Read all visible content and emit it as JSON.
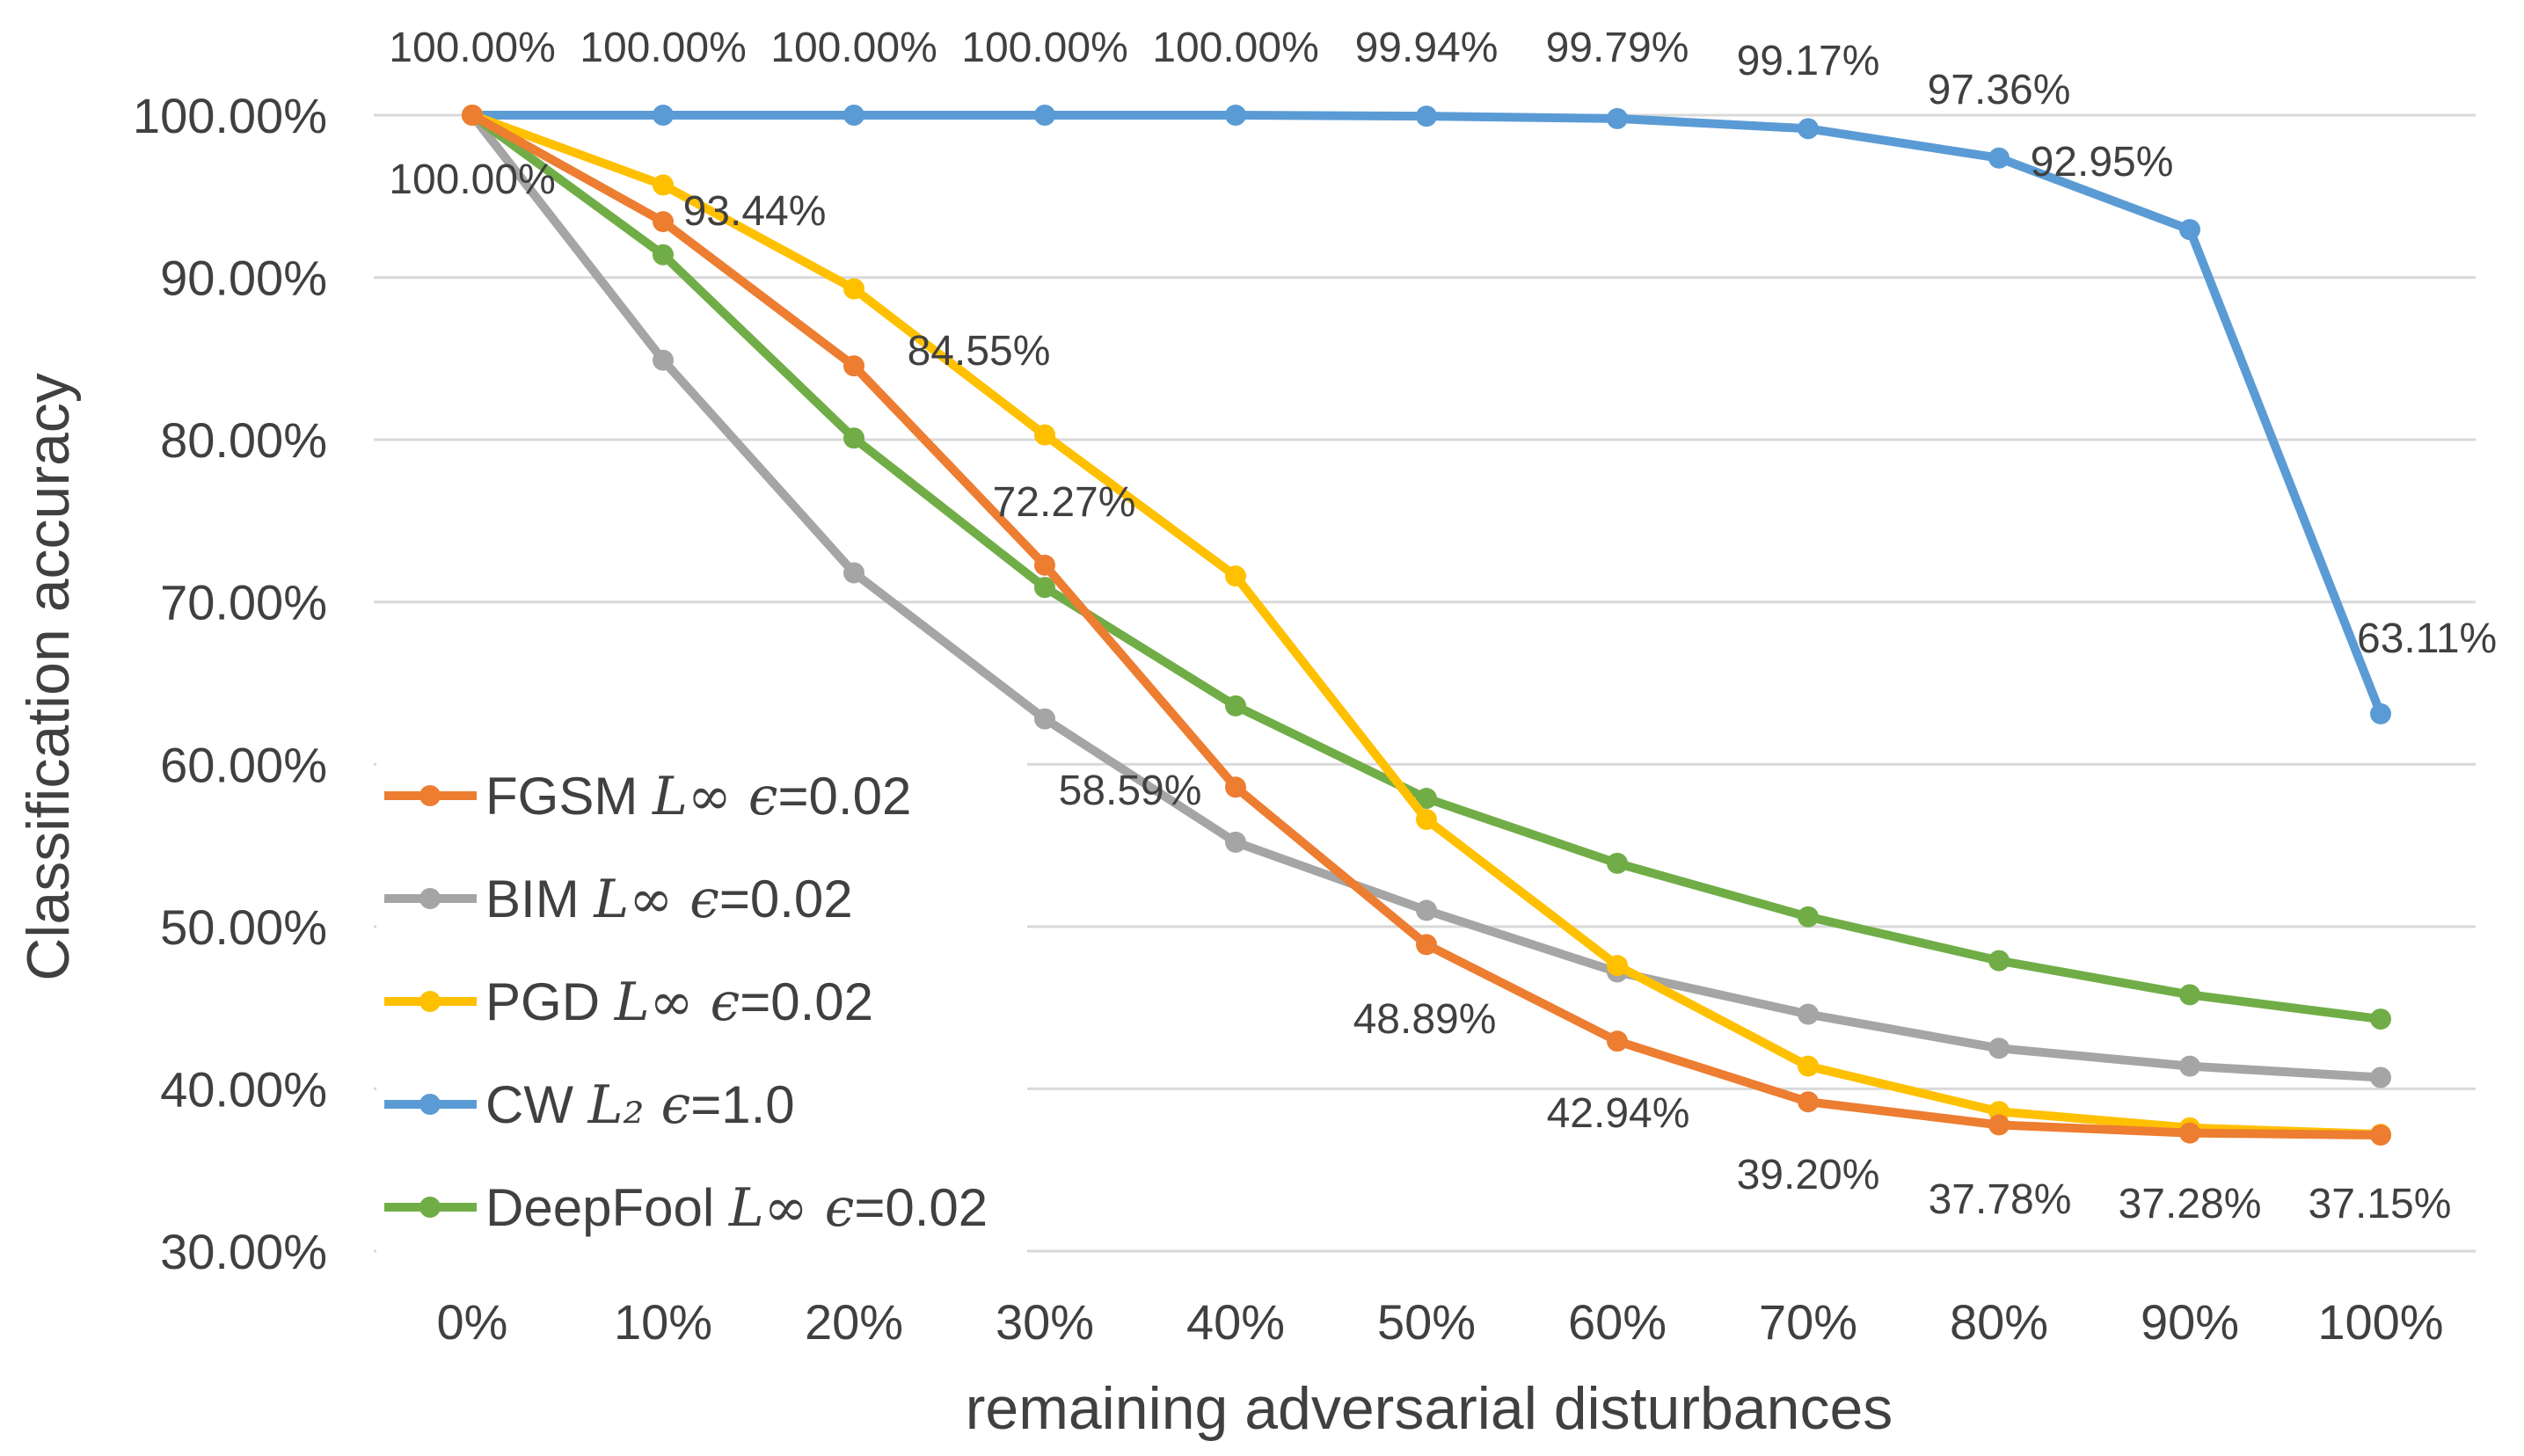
{
  "chart_data": {
    "type": "line",
    "title": "",
    "xlabel": "remaining adversarial disturbances",
    "ylabel": "Classification accuracy",
    "categories": [
      "0%",
      "10%",
      "20%",
      "30%",
      "40%",
      "50%",
      "60%",
      "70%",
      "80%",
      "90%",
      "100%"
    ],
    "ylim": [
      30,
      100
    ],
    "yticks": [
      "30.00%",
      "40.00%",
      "50.00%",
      "60.00%",
      "70.00%",
      "80.00%",
      "90.00%",
      "100.00%"
    ],
    "grid": true,
    "legend_position": "bottom-left",
    "series": [
      {
        "key": "fgsm",
        "name": "FGSM",
        "legend_math": "L∞ ϵ",
        "legend_value": "=0.02",
        "color": "#ED7D31",
        "values": [
          100.0,
          93.44,
          84.55,
          72.27,
          58.59,
          48.89,
          42.94,
          39.2,
          37.78,
          37.28,
          37.15
        ]
      },
      {
        "key": "bim",
        "name": "BIM",
        "legend_math": "L∞ ϵ",
        "legend_value": "=0.02",
        "color": "#A5A5A5",
        "values": [
          100.0,
          84.9,
          71.8,
          62.8,
          55.2,
          51.0,
          47.2,
          44.6,
          42.5,
          41.4,
          40.7
        ]
      },
      {
        "key": "pgd",
        "name": "PGD",
        "legend_math": "L∞ ϵ",
        "legend_value": "=0.02",
        "color": "#FFC000",
        "values": [
          100.0,
          95.7,
          89.3,
          80.3,
          71.6,
          56.6,
          47.6,
          41.4,
          38.6,
          37.6,
          37.2
        ]
      },
      {
        "key": "cw",
        "name": "CW",
        "legend_math": "L₂ ϵ",
        "legend_value": "=1.0",
        "color": "#5B9BD5",
        "values": [
          100.0,
          100.0,
          100.0,
          100.0,
          100.0,
          99.94,
          99.79,
          99.17,
          97.36,
          92.95,
          63.11
        ]
      },
      {
        "key": "deepfool",
        "name": "DeepFool",
        "legend_math": "L∞ ϵ",
        "legend_value": "=0.02",
        "color": "#70AD47",
        "values": [
          100.0,
          91.4,
          80.1,
          70.9,
          63.6,
          57.9,
          53.9,
          50.6,
          47.9,
          45.8,
          44.3
        ]
      }
    ],
    "data_labels": {
      "cw": [
        "100.00%",
        "100.00%",
        "100.00%",
        "100.00%",
        "100.00%",
        "99.94%",
        "99.79%",
        "99.17%",
        "97.36%",
        "92.95%",
        "63.11%"
      ],
      "fgsm": [
        "100.00%",
        "93.44%",
        "84.55%",
        "72.27%",
        "58.59%",
        "48.89%",
        "42.94%",
        "39.20%",
        "37.78%",
        "37.28%",
        "37.15%"
      ]
    }
  }
}
